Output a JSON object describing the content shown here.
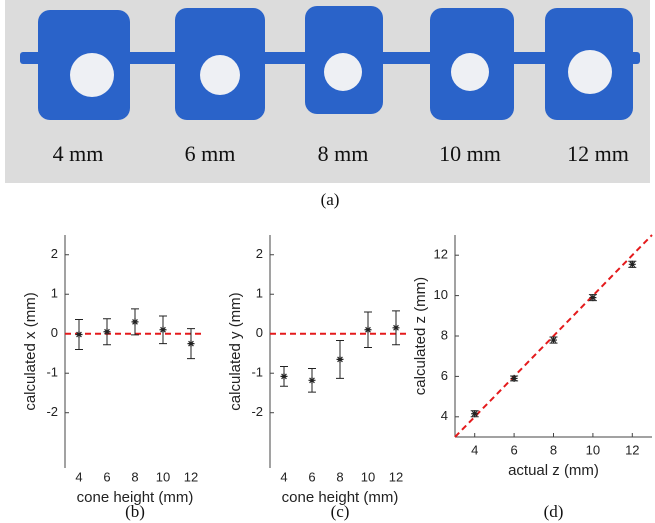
{
  "photo": {
    "labels": [
      "4 mm",
      "6 mm",
      "8 mm",
      "10 mm",
      "12 mm"
    ],
    "caption": "(a)"
  },
  "chart_data": [
    {
      "type": "errorbar",
      "caption": "(b)",
      "xlabel": "cone height (mm)",
      "ylabel": "calculated x (mm)",
      "x": [
        4,
        6,
        8,
        10,
        12
      ],
      "values": [
        -0.02,
        0.05,
        0.3,
        0.1,
        -0.25
      ],
      "errors": [
        0.38,
        0.33,
        0.33,
        0.35,
        0.38
      ],
      "xlim": [
        3,
        13
      ],
      "ylim": [
        -3.4,
        2.5
      ],
      "xticks": [
        4,
        6,
        8,
        10,
        12
      ],
      "yticks": [
        -2,
        -1,
        0,
        1,
        2
      ],
      "color": "#222222",
      "x_axis_line": false,
      "reference_line": {
        "slope": 0,
        "intercept": 0,
        "color": "#e41a1c"
      }
    },
    {
      "type": "errorbar",
      "caption": "(c)",
      "xlabel": "cone height (mm)",
      "ylabel": "calculated y (mm)",
      "x": [
        4,
        6,
        8,
        10,
        12
      ],
      "values": [
        -1.08,
        -1.18,
        -0.65,
        0.1,
        0.15
      ],
      "errors": [
        0.25,
        0.3,
        0.48,
        0.45,
        0.43
      ],
      "xlim": [
        3,
        13
      ],
      "ylim": [
        -3.4,
        2.5
      ],
      "xticks": [
        4,
        6,
        8,
        10,
        12
      ],
      "yticks": [
        -2,
        -1,
        0,
        1,
        2
      ],
      "color": "#222222",
      "x_axis_line": false,
      "reference_line": {
        "slope": 0,
        "intercept": 0,
        "color": "#e41a1c"
      }
    },
    {
      "type": "errorbar",
      "caption": "(d)",
      "xlabel": "actual z (mm)",
      "ylabel": "calculated z (mm)",
      "x": [
        4,
        6,
        8,
        10,
        12
      ],
      "values": [
        4.15,
        5.9,
        7.8,
        9.9,
        11.55
      ],
      "errors": [
        0.15,
        0.12,
        0.15,
        0.15,
        0.15
      ],
      "xlim": [
        3,
        13
      ],
      "ylim": [
        3,
        13
      ],
      "xticks": [
        4,
        6,
        8,
        10,
        12
      ],
      "yticks": [
        4,
        6,
        8,
        10,
        12
      ],
      "color": "#222222",
      "x_axis_line": true,
      "reference_line": {
        "slope": 1,
        "intercept": 0,
        "color": "#e41a1c"
      }
    }
  ]
}
